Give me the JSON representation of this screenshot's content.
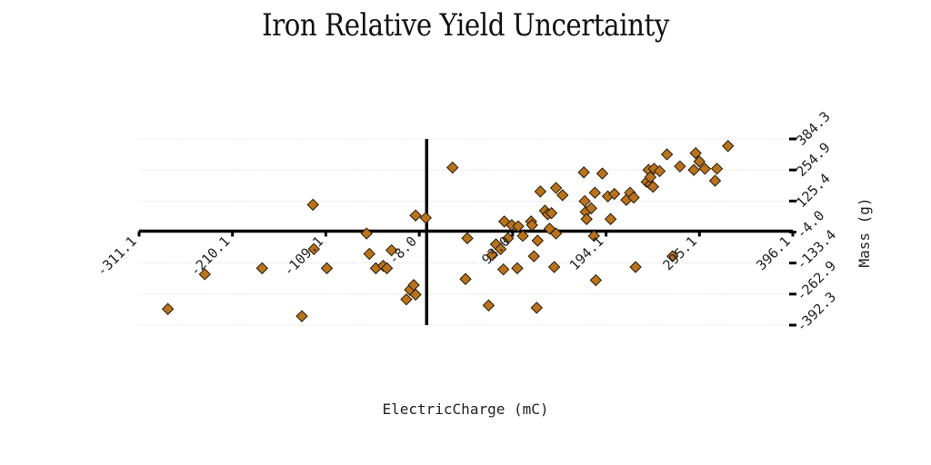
{
  "chart_data": {
    "type": "scatter",
    "title": "Iron Relative Yield Uncertainty",
    "xlabel": "ElectricCharge (mC)",
    "ylabel": "Mass (g)",
    "xlim": [
      -311.1,
      396.1
    ],
    "ylim": [
      -392.3,
      384.3
    ],
    "x_ticks": [
      "-311.1",
      "-210.1",
      "-109.1",
      "-8.0",
      "93.0",
      "194.1",
      "295.1",
      "396.1"
    ],
    "y_ticks": [
      "384.3",
      "254.9",
      "125.4",
      "-4.0",
      "-133.4",
      "-262.9",
      "-392.3"
    ],
    "grid": "horizontal",
    "marker": "diamond",
    "color": "#b8731e",
    "points": [
      [
        -280,
        -325
      ],
      [
        -240,
        -180
      ],
      [
        -135,
        -355
      ],
      [
        -123,
        110
      ],
      [
        -122,
        -75
      ],
      [
        -108,
        -155
      ],
      [
        -178,
        -155
      ],
      [
        -65,
        -10
      ],
      [
        -62,
        -95
      ],
      [
        -55,
        -155
      ],
      [
        -47,
        -145
      ],
      [
        -43,
        -155
      ],
      [
        -38,
        -80
      ],
      [
        -22,
        -285
      ],
      [
        -18,
        -245
      ],
      [
        -14,
        -225
      ],
      [
        -12,
        -265
      ],
      [
        -12,
        65
      ],
      [
        -1,
        55
      ],
      [
        28,
        265
      ],
      [
        42,
        -200
      ],
      [
        44,
        -30
      ],
      [
        67,
        -310
      ],
      [
        71,
        -100
      ],
      [
        75,
        -55
      ],
      [
        80,
        -75
      ],
      [
        83,
        -160
      ],
      [
        84,
        40
      ],
      [
        88,
        -30
      ],
      [
        92,
        25
      ],
      [
        98,
        -155
      ],
      [
        99,
        20
      ],
      [
        104,
        -20
      ],
      [
        113,
        40
      ],
      [
        114,
        25
      ],
      [
        116,
        -105
      ],
      [
        119,
        -320
      ],
      [
        120,
        -40
      ],
      [
        123,
        165
      ],
      [
        128,
        85
      ],
      [
        131,
        70
      ],
      [
        133,
        10
      ],
      [
        135,
        75
      ],
      [
        138,
        -150
      ],
      [
        140,
        -10
      ],
      [
        140,
        180
      ],
      [
        147,
        150
      ],
      [
        170,
        245
      ],
      [
        171,
        125
      ],
      [
        172,
        80
      ],
      [
        173,
        50
      ],
      [
        178,
        95
      ],
      [
        181,
        -20
      ],
      [
        182,
        160
      ],
      [
        183,
        -205
      ],
      [
        190,
        240
      ],
      [
        196,
        145
      ],
      [
        199,
        50
      ],
      [
        203,
        155
      ],
      [
        216,
        130
      ],
      [
        220,
        160
      ],
      [
        224,
        140
      ],
      [
        226,
        -150
      ],
      [
        238,
        205
      ],
      [
        240,
        255
      ],
      [
        242,
        195
      ],
      [
        242,
        225
      ],
      [
        245,
        185
      ],
      [
        246,
        260
      ],
      [
        252,
        250
      ],
      [
        260,
        320
      ],
      [
        266,
        -105
      ],
      [
        274,
        270
      ],
      [
        289,
        255
      ],
      [
        291,
        325
      ],
      [
        295,
        290
      ],
      [
        301,
        260
      ],
      [
        312,
        210
      ],
      [
        314,
        260
      ],
      [
        326,
        355
      ]
    ]
  }
}
